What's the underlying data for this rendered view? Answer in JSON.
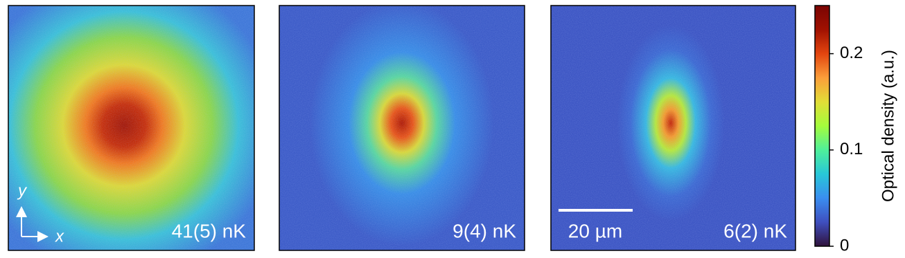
{
  "chart_data": {
    "type": "heatmap",
    "panels": [
      {
        "label": "41(5) nK"
      },
      {
        "label": "9(4) nK"
      },
      {
        "label": "6(2) nK"
      }
    ],
    "scale_bar": "20 µm",
    "axis_labels": {
      "x": "x",
      "y": "y"
    },
    "colorbar": {
      "label": "Optical density (a.u.)",
      "ylim": [
        0,
        0.25
      ],
      "yticks": [
        0,
        0.1,
        0.2
      ],
      "colormap": [
        "#30123b",
        "#3f4fbf",
        "#3a8ef0",
        "#28c7d8",
        "#4ff09a",
        "#a4fc3c",
        "#e1dd37",
        "#fb9e3a",
        "#e3450f",
        "#a01101",
        "#7a0403"
      ]
    }
  }
}
